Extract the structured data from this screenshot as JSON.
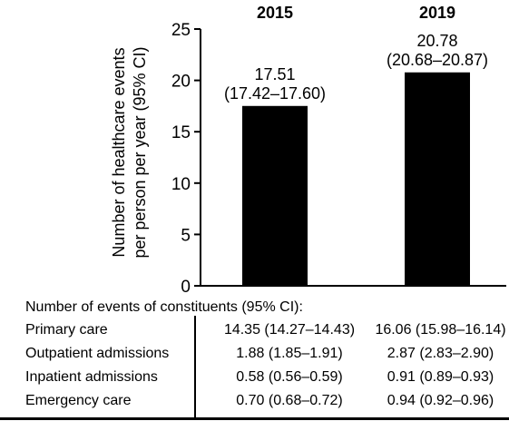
{
  "chart_data": {
    "type": "bar",
    "categories": [
      "2015",
      "2019"
    ],
    "values": [
      17.51,
      20.78
    ],
    "value_labels": [
      "17.51",
      "20.78"
    ],
    "ci_labels": [
      "(17.42–17.60)",
      "(20.68–20.87)"
    ],
    "ylabel_lines": [
      "Number of healthcare events",
      "per person per year (95% CI)"
    ],
    "ylim": [
      0,
      25
    ],
    "yticks": [
      0,
      5,
      10,
      15,
      20,
      25
    ],
    "ytick_labels": [
      "0",
      "5",
      "10",
      "15",
      "20",
      "25"
    ],
    "bar_color": "#000000",
    "grid": false
  },
  "constituents_table": {
    "title": "Number of events of constituents (95% CI):",
    "rows": [
      {
        "name": "Primary care",
        "v2015": "14.35 (14.27–14.43)",
        "v2019": "16.06 (15.98–16.14)"
      },
      {
        "name": "Outpatient admissions",
        "v2015": "1.88 (1.85–1.91)",
        "v2019": "2.87 (2.83–2.90)"
      },
      {
        "name": "Inpatient admissions",
        "v2015": "0.58 (0.56–0.59)",
        "v2019": "0.91 (0.89–0.93)"
      },
      {
        "name": "Emergency care",
        "v2015": "0.70 (0.68–0.72)",
        "v2019": "0.94 (0.92–0.96)"
      }
    ]
  }
}
